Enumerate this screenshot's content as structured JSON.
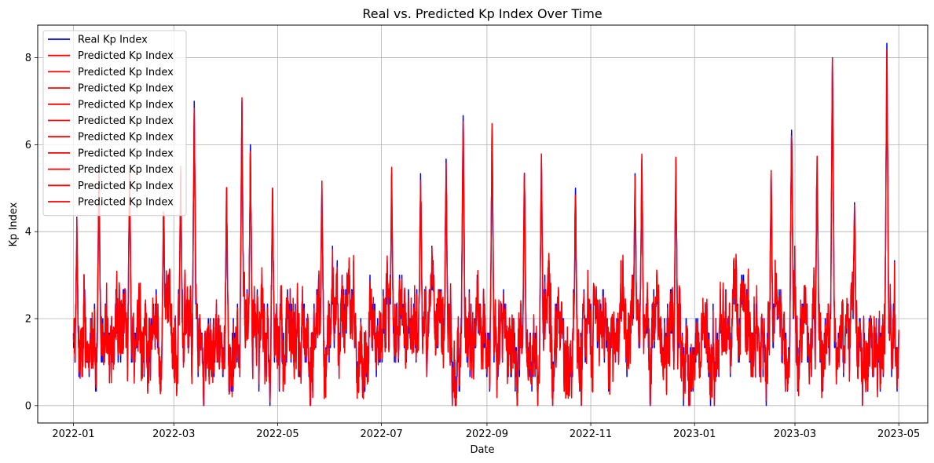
{
  "chart_data": {
    "type": "line",
    "title": "Real vs. Predicted Kp Index Over Time",
    "xlabel": "Date",
    "ylabel": "Kp Index",
    "x_range": [
      "2021-12-11",
      "2023-05-18"
    ],
    "ylim": [
      -0.4,
      8.75
    ],
    "grid": true,
    "legend_placement": "upper-left",
    "x_ticks": [
      "2022-01",
      "2022-03",
      "2022-05",
      "2022-07",
      "2022-09",
      "2022-11",
      "2023-01",
      "2023-03",
      "2023-05"
    ],
    "y_ticks": [
      0,
      2,
      4,
      6,
      8
    ],
    "series": [
      {
        "name": "Real Kp Index",
        "color": "#0000ff",
        "start": "2022-01-01",
        "end": "2023-05-01",
        "min": 0,
        "max": 8.33
      },
      {
        "name": "Predicted Kp Index",
        "color": "#ff0000",
        "start": "2022-01-01",
        "end": "2023-05-01",
        "min": 0,
        "max": 8.2
      },
      {
        "name": "Predicted Kp Index",
        "color": "#ff0000"
      },
      {
        "name": "Predicted Kp Index",
        "color": "#ff0000"
      },
      {
        "name": "Predicted Kp Index",
        "color": "#ff0000"
      },
      {
        "name": "Predicted Kp Index",
        "color": "#ff0000"
      },
      {
        "name": "Predicted Kp Index",
        "color": "#ff0000"
      },
      {
        "name": "Predicted Kp Index",
        "color": "#ff0000"
      },
      {
        "name": "Predicted Kp Index",
        "color": "#ff0000"
      },
      {
        "name": "Predicted Kp Index",
        "color": "#ff0000"
      },
      {
        "name": "Predicted Kp Index",
        "color": "#ff0000"
      }
    ],
    "peaks": [
      {
        "date": "2022-01-03",
        "value": 4.0
      },
      {
        "date": "2022-01-16",
        "value": 5.33
      },
      {
        "date": "2022-02-03",
        "value": 5.33
      },
      {
        "date": "2022-02-23",
        "value": 4.67
      },
      {
        "date": "2022-03-05",
        "value": 5.33
      },
      {
        "date": "2022-03-13",
        "value": 7.0
      },
      {
        "date": "2022-04-01",
        "value": 5.0
      },
      {
        "date": "2022-04-10",
        "value": 6.67
      },
      {
        "date": "2022-04-15",
        "value": 6.0
      },
      {
        "date": "2022-04-28",
        "value": 5.0
      },
      {
        "date": "2022-05-27",
        "value": 5.0
      },
      {
        "date": "2022-07-07",
        "value": 5.33
      },
      {
        "date": "2022-07-24",
        "value": 5.33
      },
      {
        "date": "2022-08-08",
        "value": 5.67
      },
      {
        "date": "2022-08-18",
        "value": 6.67
      },
      {
        "date": "2022-09-04",
        "value": 6.33
      },
      {
        "date": "2022-09-23",
        "value": 5.33
      },
      {
        "date": "2022-10-03",
        "value": 5.67
      },
      {
        "date": "2022-10-23",
        "value": 5.0
      },
      {
        "date": "2022-11-27",
        "value": 5.33
      },
      {
        "date": "2022-12-01",
        "value": 5.67
      },
      {
        "date": "2022-12-21",
        "value": 5.67
      },
      {
        "date": "2023-02-15",
        "value": 5.33
      },
      {
        "date": "2023-02-27",
        "value": 6.67
      },
      {
        "date": "2023-03-14",
        "value": 5.67
      },
      {
        "date": "2023-03-23",
        "value": 8.0
      },
      {
        "date": "2023-04-05",
        "value": 5.0
      },
      {
        "date": "2023-04-24",
        "value": 8.33
      }
    ]
  }
}
